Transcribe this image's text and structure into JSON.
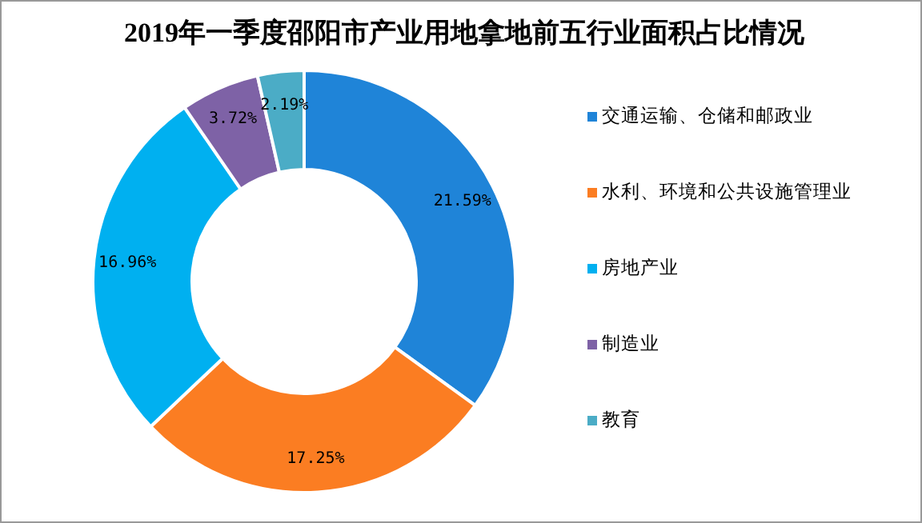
{
  "chart_data": {
    "type": "donut",
    "title": "2019年一季度邵阳市产业用地拿地前五行业面积占比情况",
    "categories": [
      "交通运输、仓储和邮政业",
      "水利、环境和公共设施管理业",
      "房地产业",
      "制造业",
      "教育"
    ],
    "values": [
      21.59,
      17.25,
      16.96,
      3.72,
      2.19
    ],
    "colors": [
      "#1f84d8",
      "#fb7d22",
      "#00b0f0",
      "#7e62a6",
      "#4bacc6"
    ],
    "value_labels": [
      "21.59%",
      "17.25%",
      "16.96%",
      "3.72%",
      "2.19%"
    ],
    "legend": "right"
  }
}
